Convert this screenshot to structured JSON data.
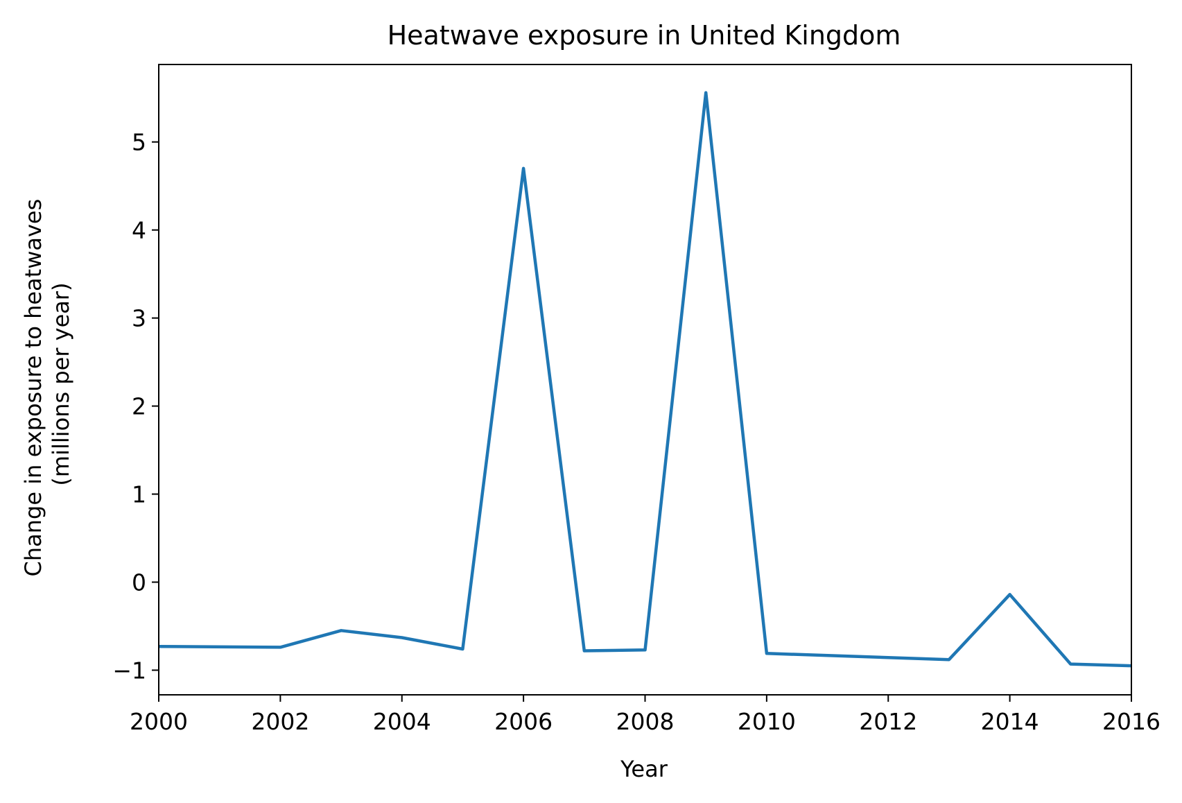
{
  "chart_data": {
    "type": "line",
    "title": "Heatwave exposure in United Kingdom",
    "xlabel": "Year",
    "ylabel": [
      "Change in exposure to heatwaves",
      "(millions per year)"
    ],
    "xlim": [
      2000,
      2016
    ],
    "ylim": [
      -1.28,
      5.88
    ],
    "x_ticks": [
      2000,
      2002,
      2004,
      2006,
      2008,
      2010,
      2012,
      2014,
      2016
    ],
    "y_ticks": [
      -1,
      0,
      1,
      2,
      3,
      4,
      5
    ],
    "y_tick_labels": [
      "−1",
      "0",
      "1",
      "2",
      "3",
      "4",
      "5"
    ],
    "grid": false,
    "series": [
      {
        "color": "#1f77b4",
        "x": [
          2000,
          2002,
          2003,
          2004,
          2005,
          2006,
          2007,
          2008,
          2009,
          2010,
          2013,
          2014,
          2015,
          2016
        ],
        "values": [
          -0.73,
          -0.74,
          -0.55,
          -0.63,
          -0.76,
          4.7,
          -0.78,
          -0.77,
          5.56,
          -0.81,
          -0.88,
          -0.14,
          -0.93,
          -0.95
        ]
      }
    ]
  }
}
